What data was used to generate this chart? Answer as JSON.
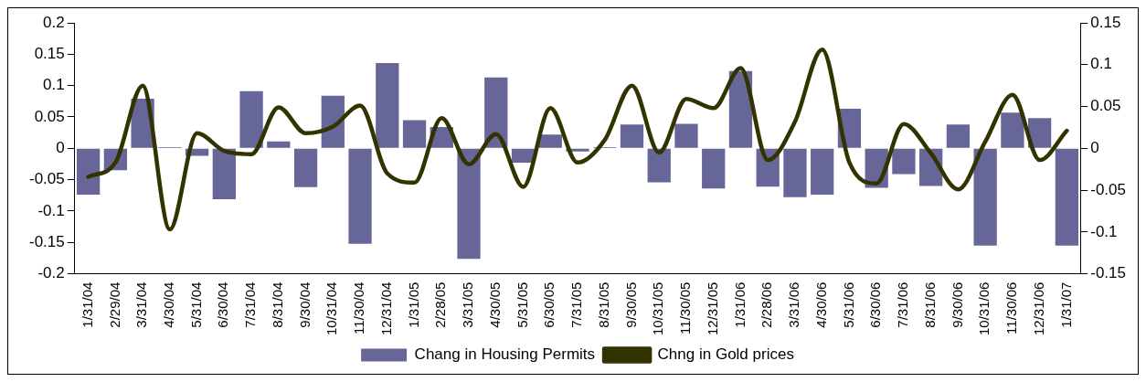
{
  "chart_data": {
    "type": "bar",
    "categories": [
      "1/31/04",
      "2/29/04",
      "3/31/04",
      "4/30/04",
      "5/31/04",
      "6/30/04",
      "7/31/04",
      "8/31/04",
      "9/30/04",
      "10/31/04",
      "11/30/04",
      "12/31/04",
      "1/31/05",
      "2/28/05",
      "3/31/05",
      "4/30/05",
      "5/31/05",
      "6/30/05",
      "7/31/05",
      "8/31/05",
      "9/30/05",
      "10/31/05",
      "11/30/05",
      "12/31/05",
      "1/31/06",
      "2/28/06",
      "3/31/06",
      "4/30/06",
      "5/31/06",
      "6/30/06",
      "7/31/06",
      "8/31/06",
      "9/30/06",
      "10/31/06",
      "11/30/06",
      "12/31/06",
      "1/31/07"
    ],
    "series": [
      {
        "name": "Chang in Housing Permits",
        "color": "#666699",
        "values": [
          -0.074,
          -0.035,
          0.079,
          0.002,
          -0.012,
          -0.081,
          0.091,
          0.011,
          -0.062,
          0.084,
          -0.152,
          0.136,
          0.045,
          0.034,
          -0.176,
          0.113,
          -0.023,
          0.022,
          -0.005,
          0.002,
          0.038,
          -0.054,
          0.039,
          -0.064,
          0.123,
          -0.061,
          -0.078,
          -0.074,
          0.063,
          -0.063,
          -0.041,
          -0.06,
          0.038,
          -0.155,
          0.057,
          0.048,
          -0.155
        ]
      },
      {
        "name": "Chng in Gold prices",
        "type": "line",
        "axis": "y2",
        "color": "#333300",
        "values": [
          -0.034,
          -0.017,
          0.075,
          -0.097,
          0.018,
          -0.003,
          -0.007,
          0.049,
          0.018,
          0.026,
          0.051,
          -0.03,
          -0.041,
          0.036,
          -0.019,
          0.017,
          -0.046,
          0.048,
          -0.017,
          0.01,
          0.075,
          -0.005,
          0.059,
          0.048,
          0.096,
          -0.014,
          0.032,
          0.118,
          -0.017,
          -0.042,
          0.029,
          -0.006,
          -0.049,
          0.008,
          0.064,
          -0.014,
          0.021
        ]
      }
    ],
    "ylim": [
      -0.2,
      0.2
    ],
    "yticks": [
      -0.2,
      -0.15,
      -0.1,
      -0.05,
      0,
      0.05,
      0.1,
      0.15,
      0.2
    ],
    "y2lim": [
      -0.15,
      0.15
    ],
    "y2ticks": [
      -0.15,
      -0.1,
      -0.05,
      0,
      0.05,
      0.1,
      0.15
    ],
    "grid": false,
    "legend": "bottom",
    "marker": "none",
    "line_style": "solid"
  }
}
